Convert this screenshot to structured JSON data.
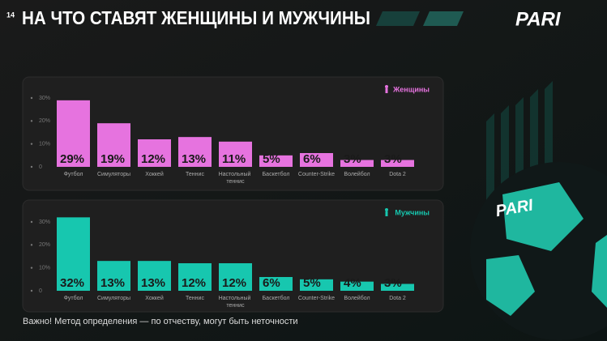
{
  "page_number": "14",
  "title": "НА ЧТО СТАВЯТ ЖЕНЩИНЫ И МУЖЧИНЫ",
  "logo": "PARI",
  "note": "Важно! Метод определения — по отчеству, могут быть неточности",
  "chart_data": [
    {
      "type": "bar",
      "categories": [
        "Футбол",
        "Симуляторы",
        "Хоккей",
        "Теннис",
        "Настольный теннис",
        "Баскетбол",
        "Counter-Strike",
        "Волейбол",
        "Dota 2"
      ],
      "series": [
        {
          "name": "Женщины",
          "color": "#e673df",
          "values": [
            29,
            19,
            12,
            13,
            11,
            5,
            6,
            3,
            3
          ],
          "value_labels": [
            "29%",
            "19%",
            "12%",
            "13%",
            "11%",
            "5%",
            "6%",
            "3%",
            "3%"
          ]
        }
      ],
      "ylim": [
        0,
        30
      ],
      "yticks": [
        0,
        {
          "value": 10,
          "label": "10%"
        },
        {
          "value": 20,
          "label": "20%"
        },
        {
          "value": 30,
          "label": "30%"
        }
      ],
      "legend": "top-right"
    },
    {
      "type": "bar",
      "categories": [
        "Футбол",
        "Симуляторы",
        "Хоккей",
        "Теннис",
        "Настольный теннис",
        "Баскетбол",
        "Counter-Strike",
        "Волейбол",
        "Dota 2"
      ],
      "series": [
        {
          "name": "Мужчины",
          "color": "#17c7af",
          "values": [
            32,
            13,
            13,
            12,
            12,
            6,
            5,
            4,
            3
          ],
          "value_labels": [
            "32%",
            "13%",
            "13%",
            "12%",
            "12%",
            "6%",
            "5%",
            "4%",
            "3%"
          ]
        }
      ],
      "ylim": [
        0,
        30
      ],
      "yticks": [
        0,
        {
          "value": 10,
          "label": "10%"
        },
        {
          "value": 20,
          "label": "20%"
        },
        {
          "value": 30,
          "label": "30%"
        }
      ],
      "legend": "top-right"
    }
  ]
}
